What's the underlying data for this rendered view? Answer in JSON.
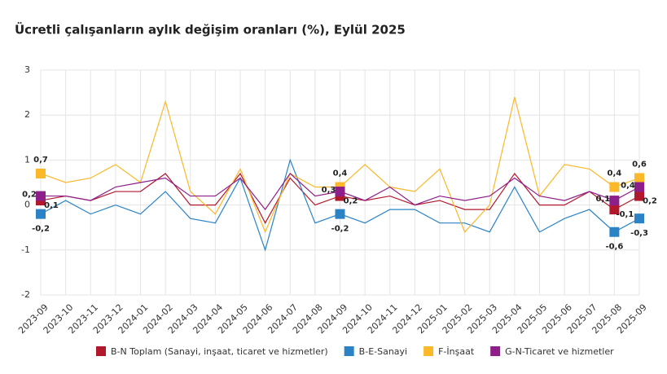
{
  "chart_data": {
    "type": "line",
    "title": "Ücretli çalışanların aylık değişim oranları (%), Eylül 2025",
    "categories": [
      "2023-09",
      "2023-10",
      "2023-11",
      "2023-12",
      "2024-01",
      "2024-02",
      "2024-03",
      "2024-04",
      "2024-05",
      "2024-06",
      "2024-07",
      "2024-08",
      "2024-09",
      "2024-10",
      "2024-11",
      "2024-12",
      "2025-01",
      "2025-02",
      "2025-03",
      "2025-04",
      "2025-05",
      "2025-06",
      "2025-07",
      "2025-08",
      "2025-09"
    ],
    "ylim": [
      -2,
      3
    ],
    "yticks": [
      -2,
      -1,
      0,
      1,
      2,
      3
    ],
    "grid": true,
    "series": [
      {
        "name": "B-N Toplam (Sanayi, inşaat, ticaret ve hizmetler)",
        "color": "#b2182b",
        "values": [
          0.1,
          0.2,
          0.1,
          0.3,
          0.3,
          0.7,
          0.0,
          0.0,
          0.7,
          -0.4,
          0.6,
          0.0,
          0.2,
          0.1,
          0.2,
          0.0,
          0.1,
          -0.1,
          -0.1,
          0.7,
          0.0,
          0.0,
          0.3,
          -0.1,
          0.2
        ],
        "value_labels": [
          "0,1",
          null,
          null,
          null,
          null,
          null,
          null,
          null,
          null,
          null,
          null,
          null,
          "0,2",
          null,
          null,
          null,
          null,
          null,
          null,
          null,
          null,
          null,
          null,
          "-0,1",
          "0,2"
        ]
      },
      {
        "name": "B-E-Sanayi",
        "color": "#2b83c6",
        "values": [
          -0.2,
          0.1,
          -0.2,
          0.0,
          -0.2,
          0.3,
          -0.3,
          -0.4,
          0.6,
          -1.0,
          1.0,
          -0.4,
          -0.2,
          -0.4,
          -0.1,
          -0.1,
          -0.4,
          -0.4,
          -0.6,
          0.4,
          -0.6,
          -0.3,
          -0.1,
          -0.6,
          -0.3
        ],
        "value_labels": [
          "-0,2",
          null,
          null,
          null,
          null,
          null,
          null,
          null,
          null,
          null,
          null,
          null,
          "-0,2",
          null,
          null,
          null,
          null,
          null,
          null,
          null,
          null,
          null,
          null,
          "-0,6",
          "-0,3"
        ]
      },
      {
        "name": "F-İnşaat",
        "color": "#fbb829",
        "values": [
          0.7,
          0.5,
          0.6,
          0.9,
          0.5,
          2.3,
          0.3,
          -0.2,
          0.8,
          -0.6,
          0.7,
          0.4,
          0.4,
          0.9,
          0.4,
          0.3,
          0.8,
          -0.6,
          0.0,
          2.4,
          0.2,
          0.9,
          0.8,
          0.4,
          0.6
        ],
        "value_labels": [
          "0,7",
          null,
          null,
          null,
          null,
          null,
          null,
          null,
          null,
          null,
          null,
          null,
          "0,4",
          null,
          null,
          null,
          null,
          null,
          null,
          null,
          null,
          null,
          null,
          "0,4",
          "0,6"
        ]
      },
      {
        "name": "G-N-Ticaret ve hizmetler",
        "color": "#8e1e8a",
        "values": [
          0.2,
          0.2,
          0.1,
          0.4,
          0.5,
          0.6,
          0.2,
          0.2,
          0.6,
          -0.1,
          0.7,
          0.2,
          0.3,
          0.1,
          0.4,
          0.0,
          0.2,
          0.1,
          0.2,
          0.6,
          0.2,
          0.1,
          0.3,
          0.1,
          0.4
        ],
        "value_labels": [
          "0,2",
          null,
          null,
          null,
          null,
          null,
          null,
          null,
          null,
          null,
          null,
          null,
          "0,3",
          null,
          null,
          null,
          null,
          null,
          null,
          null,
          null,
          null,
          null,
          "0,1",
          "0,4"
        ]
      }
    ]
  }
}
